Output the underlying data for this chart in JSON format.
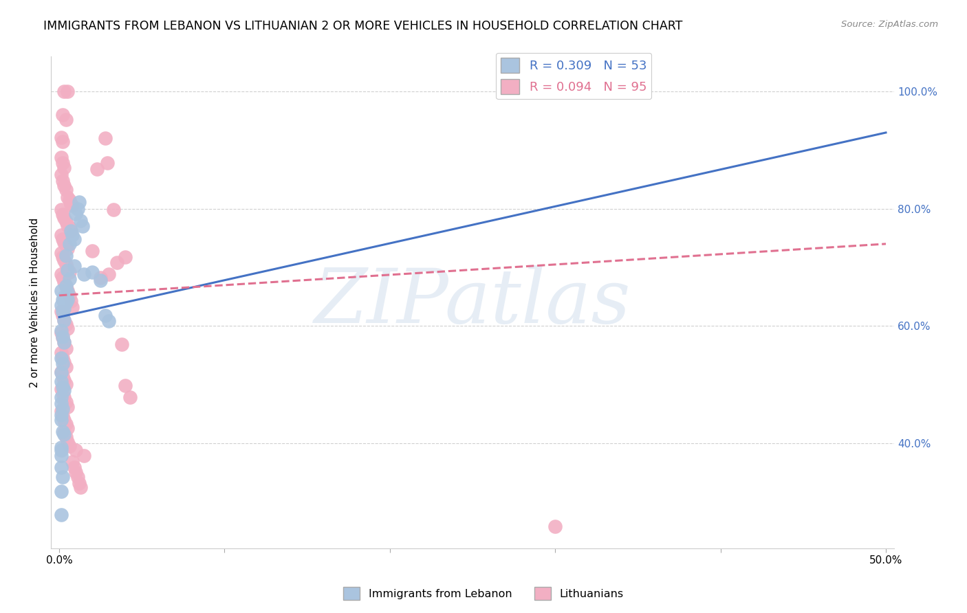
{
  "title": "IMMIGRANTS FROM LEBANON VS LITHUANIAN 2 OR MORE VEHICLES IN HOUSEHOLD CORRELATION CHART",
  "source": "Source: ZipAtlas.com",
  "ylabel": "2 or more Vehicles in Household",
  "ytick_vals": [
    0.4,
    0.6,
    0.8,
    1.0
  ],
  "ytick_labels": [
    "40.0%",
    "60.0%",
    "80.0%",
    "100.0%"
  ],
  "xtick_vals": [
    0.0,
    0.1,
    0.2,
    0.3,
    0.4,
    0.5
  ],
  "xtick_labels": [
    "0.0%",
    "",
    "",
    "",
    "",
    "50.0%"
  ],
  "legend_blue_label": "R = 0.309   N = 53",
  "legend_pink_label": "R = 0.094   N = 95",
  "watermark": "ZIPatlas",
  "blue_color": "#aac4df",
  "pink_color": "#f2afc3",
  "blue_line_color": "#4472c4",
  "pink_line_color": "#e07090",
  "blue_scatter": [
    [
      0.001,
      0.66
    ],
    [
      0.002,
      0.645
    ],
    [
      0.003,
      0.65
    ],
    [
      0.004,
      0.668
    ],
    [
      0.004,
      0.72
    ],
    [
      0.005,
      0.695
    ],
    [
      0.006,
      0.74
    ],
    [
      0.007,
      0.762
    ],
    [
      0.008,
      0.755
    ],
    [
      0.009,
      0.748
    ],
    [
      0.01,
      0.792
    ],
    [
      0.011,
      0.8
    ],
    [
      0.012,
      0.812
    ],
    [
      0.013,
      0.78
    ],
    [
      0.014,
      0.77
    ],
    [
      0.001,
      0.635
    ],
    [
      0.002,
      0.625
    ],
    [
      0.003,
      0.61
    ],
    [
      0.003,
      0.63
    ],
    [
      0.004,
      0.64
    ],
    [
      0.004,
      0.65
    ],
    [
      0.005,
      0.658
    ],
    [
      0.005,
      0.645
    ],
    [
      0.001,
      0.592
    ],
    [
      0.002,
      0.582
    ],
    [
      0.003,
      0.572
    ],
    [
      0.001,
      0.545
    ],
    [
      0.002,
      0.536
    ],
    [
      0.001,
      0.52
    ],
    [
      0.001,
      0.505
    ],
    [
      0.002,
      0.496
    ],
    [
      0.003,
      0.49
    ],
    [
      0.001,
      0.478
    ],
    [
      0.001,
      0.468
    ],
    [
      0.002,
      0.458
    ],
    [
      0.001,
      0.448
    ],
    [
      0.001,
      0.44
    ],
    [
      0.002,
      0.42
    ],
    [
      0.003,
      0.415
    ],
    [
      0.001,
      0.392
    ],
    [
      0.001,
      0.378
    ],
    [
      0.001,
      0.358
    ],
    [
      0.002,
      0.342
    ],
    [
      0.001,
      0.318
    ],
    [
      0.001,
      0.388
    ],
    [
      0.006,
      0.68
    ],
    [
      0.009,
      0.702
    ],
    [
      0.015,
      0.688
    ],
    [
      0.02,
      0.692
    ],
    [
      0.025,
      0.678
    ],
    [
      0.028,
      0.618
    ],
    [
      0.03,
      0.608
    ],
    [
      0.001,
      0.278
    ]
  ],
  "pink_scatter": [
    [
      0.003,
      1.0
    ],
    [
      0.005,
      1.0
    ],
    [
      0.002,
      0.96
    ],
    [
      0.004,
      0.952
    ],
    [
      0.001,
      0.922
    ],
    [
      0.002,
      0.915
    ],
    [
      0.001,
      0.888
    ],
    [
      0.002,
      0.878
    ],
    [
      0.003,
      0.87
    ],
    [
      0.001,
      0.858
    ],
    [
      0.002,
      0.848
    ],
    [
      0.003,
      0.84
    ],
    [
      0.004,
      0.832
    ],
    [
      0.005,
      0.82
    ],
    [
      0.006,
      0.815
    ],
    [
      0.007,
      0.808
    ],
    [
      0.008,
      0.805
    ],
    [
      0.001,
      0.798
    ],
    [
      0.002,
      0.79
    ],
    [
      0.003,
      0.785
    ],
    [
      0.004,
      0.778
    ],
    [
      0.005,
      0.772
    ],
    [
      0.006,
      0.768
    ],
    [
      0.007,
      0.762
    ],
    [
      0.001,
      0.755
    ],
    [
      0.002,
      0.748
    ],
    [
      0.003,
      0.742
    ],
    [
      0.004,
      0.738
    ],
    [
      0.005,
      0.732
    ],
    [
      0.001,
      0.725
    ],
    [
      0.002,
      0.718
    ],
    [
      0.003,
      0.712
    ],
    [
      0.004,
      0.705
    ],
    [
      0.005,
      0.698
    ],
    [
      0.006,
      0.692
    ],
    [
      0.001,
      0.688
    ],
    [
      0.002,
      0.682
    ],
    [
      0.003,
      0.675
    ],
    [
      0.004,
      0.668
    ],
    [
      0.005,
      0.66
    ],
    [
      0.006,
      0.652
    ],
    [
      0.007,
      0.642
    ],
    [
      0.008,
      0.632
    ],
    [
      0.001,
      0.625
    ],
    [
      0.002,
      0.618
    ],
    [
      0.003,
      0.61
    ],
    [
      0.004,
      0.602
    ],
    [
      0.005,
      0.595
    ],
    [
      0.001,
      0.588
    ],
    [
      0.002,
      0.58
    ],
    [
      0.003,
      0.572
    ],
    [
      0.004,
      0.562
    ],
    [
      0.001,
      0.555
    ],
    [
      0.002,
      0.545
    ],
    [
      0.003,
      0.538
    ],
    [
      0.004,
      0.53
    ],
    [
      0.001,
      0.522
    ],
    [
      0.002,
      0.515
    ],
    [
      0.003,
      0.508
    ],
    [
      0.004,
      0.5
    ],
    [
      0.001,
      0.492
    ],
    [
      0.002,
      0.485
    ],
    [
      0.003,
      0.478
    ],
    [
      0.004,
      0.47
    ],
    [
      0.005,
      0.462
    ],
    [
      0.001,
      0.455
    ],
    [
      0.002,
      0.447
    ],
    [
      0.003,
      0.44
    ],
    [
      0.004,
      0.432
    ],
    [
      0.005,
      0.425
    ],
    [
      0.003,
      0.418
    ],
    [
      0.004,
      0.41
    ],
    [
      0.005,
      0.402
    ],
    [
      0.006,
      0.395
    ],
    [
      0.01,
      0.388
    ],
    [
      0.015,
      0.378
    ],
    [
      0.008,
      0.368
    ],
    [
      0.009,
      0.358
    ],
    [
      0.01,
      0.35
    ],
    [
      0.011,
      0.342
    ],
    [
      0.012,
      0.332
    ],
    [
      0.013,
      0.325
    ],
    [
      0.025,
      0.682
    ],
    [
      0.03,
      0.688
    ],
    [
      0.035,
      0.708
    ],
    [
      0.04,
      0.718
    ],
    [
      0.02,
      0.728
    ],
    [
      0.023,
      0.868
    ],
    [
      0.028,
      0.92
    ],
    [
      0.029,
      0.878
    ],
    [
      0.033,
      0.798
    ],
    [
      0.038,
      0.568
    ],
    [
      0.04,
      0.498
    ],
    [
      0.043,
      0.478
    ],
    [
      0.3,
      0.258
    ]
  ],
  "blue_line": [
    [
      0.0,
      0.615
    ],
    [
      0.5,
      0.93
    ]
  ],
  "pink_line": [
    [
      0.0,
      0.652
    ],
    [
      0.5,
      0.74
    ]
  ],
  "xlim": [
    -0.005,
    0.505
  ],
  "ylim": [
    0.22,
    1.06
  ]
}
